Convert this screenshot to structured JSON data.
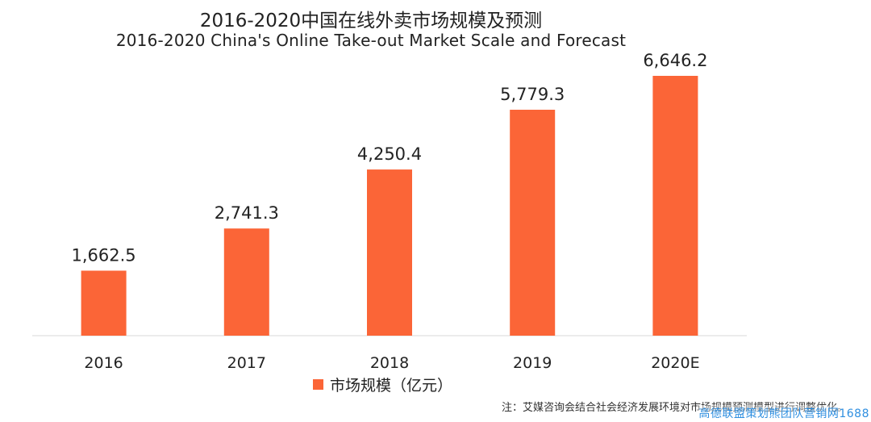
{
  "title_zh": "2016-2020中国在线外卖市场规模及预测",
  "title_en": "2016-2020 China's Online Take-out Market Scale and Forecast",
  "footnote": "注：艾媒咨询会结合社会经济发展环境对市场规模预测模型进行调整优化。",
  "watermark": "高德联盟策划熊团队营销网1688",
  "colors": {
    "bar": "#FB6537",
    "axis": "#D9D9D9",
    "text": "#222222"
  },
  "chart_data": {
    "type": "bar",
    "categories": [
      "2016",
      "2017",
      "2018",
      "2019",
      "2020E"
    ],
    "series": [
      {
        "name": "市场规模（亿元）",
        "values": [
          1662.5,
          2741.3,
          4250.4,
          5779.3,
          6646.2
        ]
      }
    ],
    "data_labels": [
      "1,662.5",
      "2,741.3",
      "4,250.4",
      "5,779.3",
      "6,646.2"
    ],
    "title": "2016-2020中国在线外卖市场规模及预测",
    "subtitle": "2016-2020 China's Online Take-out Market Scale and Forecast",
    "ylim": [
      0,
      7000
    ],
    "grid": false,
    "legend": "bottom-center"
  }
}
